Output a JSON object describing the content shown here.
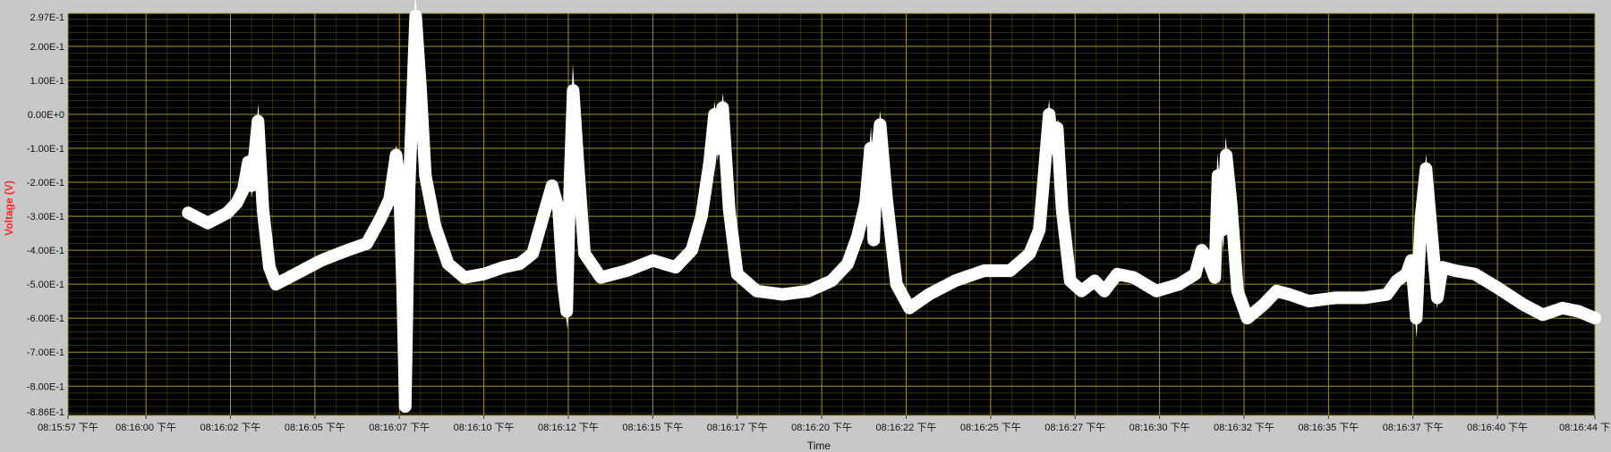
{
  "chart_data": {
    "type": "line",
    "title": "",
    "xlabel": "Time",
    "ylabel": "Voltage (V)",
    "ylim": [
      -0.886,
      0.297
    ],
    "xlim_seconds": [
      0,
      47
    ],
    "yticks": [
      "2.97E-1",
      "2.00E-1",
      "1.00E-1",
      "0.00E+0",
      "-1.00E-1",
      "-2.00E-1",
      "-3.00E-1",
      "-4.00E-1",
      "-5.00E-1",
      "-6.00E-1",
      "-7.00E-1",
      "-8.00E-1",
      "-8.86E-1"
    ],
    "ytick_values": [
      0.297,
      0.2,
      0.1,
      0.0,
      -0.1,
      -0.2,
      -0.3,
      -0.4,
      -0.5,
      -0.6,
      -0.7,
      -0.8,
      -0.886
    ],
    "xticks": [
      {
        "t": 0.0,
        "label": "08:15:57 下午"
      },
      {
        "t": 2.4,
        "label": "08:16:00 下午"
      },
      {
        "t": 5.0,
        "label": "08:16:02 下午"
      },
      {
        "t": 7.6,
        "label": "08:16:05 下午"
      },
      {
        "t": 10.2,
        "label": "08:16:07 下午"
      },
      {
        "t": 12.8,
        "label": "08:16:10 下午"
      },
      {
        "t": 15.4,
        "label": "08:16:12 下午"
      },
      {
        "t": 18.0,
        "label": "08:16:15 下午"
      },
      {
        "t": 20.6,
        "label": "08:16:17 下午"
      },
      {
        "t": 23.2,
        "label": "08:16:20 下午"
      },
      {
        "t": 25.8,
        "label": "08:16:22 下午"
      },
      {
        "t": 28.4,
        "label": "08:16:25 下午"
      },
      {
        "t": 31.0,
        "label": "08:16:27 下午"
      },
      {
        "t": 33.6,
        "label": "08:16:30 下午"
      },
      {
        "t": 36.2,
        "label": "08:16:32 下午"
      },
      {
        "t": 38.8,
        "label": "08:16:35 下午"
      },
      {
        "t": 41.4,
        "label": "08:16:37 下午"
      },
      {
        "t": 44.0,
        "label": "08:16:40 下午"
      },
      {
        "t": 47.0,
        "label": "08:16:44 下"
      }
    ],
    "grid": true,
    "colors": {
      "plot_bg": "#000000",
      "major_grid": "#a09428",
      "minor_grid": "#4e4a16",
      "trace": "#ffffff",
      "frame_bg": "#c8c8c8",
      "ylabel": "#ff2a2a"
    },
    "series": [
      {
        "points": [
          [
            3.7,
            -0.29
          ],
          [
            4.3,
            -0.32
          ],
          [
            4.9,
            -0.29
          ],
          [
            5.2,
            -0.26
          ],
          [
            5.4,
            -0.22
          ],
          [
            5.55,
            -0.14
          ],
          [
            5.65,
            -0.21
          ],
          [
            5.85,
            -0.02
          ],
          [
            6.0,
            -0.28
          ],
          [
            6.2,
            -0.45
          ],
          [
            6.4,
            -0.5
          ],
          [
            7.0,
            -0.47
          ],
          [
            7.8,
            -0.43
          ],
          [
            8.6,
            -0.4
          ],
          [
            9.2,
            -0.38
          ],
          [
            9.6,
            -0.31
          ],
          [
            9.9,
            -0.25
          ],
          [
            10.1,
            -0.12
          ],
          [
            10.2,
            -0.2
          ],
          [
            10.3,
            -0.52
          ],
          [
            10.38,
            -0.86
          ],
          [
            10.5,
            -0.22
          ],
          [
            10.7,
            0.29
          ],
          [
            10.85,
            0.08
          ],
          [
            11.0,
            -0.18
          ],
          [
            11.3,
            -0.33
          ],
          [
            11.7,
            -0.44
          ],
          [
            12.2,
            -0.48
          ],
          [
            12.8,
            -0.47
          ],
          [
            13.4,
            -0.45
          ],
          [
            13.9,
            -0.44
          ],
          [
            14.3,
            -0.41
          ],
          [
            14.6,
            -0.31
          ],
          [
            14.9,
            -0.21
          ],
          [
            15.1,
            -0.28
          ],
          [
            15.25,
            -0.5
          ],
          [
            15.35,
            -0.58
          ],
          [
            15.45,
            -0.2
          ],
          [
            15.55,
            0.07
          ],
          [
            15.7,
            -0.15
          ],
          [
            15.9,
            -0.41
          ],
          [
            16.4,
            -0.48
          ],
          [
            17.2,
            -0.46
          ],
          [
            18.0,
            -0.43
          ],
          [
            18.7,
            -0.45
          ],
          [
            19.2,
            -0.4
          ],
          [
            19.5,
            -0.3
          ],
          [
            19.75,
            -0.14
          ],
          [
            19.9,
            0.0
          ],
          [
            20.0,
            -0.1
          ],
          [
            20.15,
            0.02
          ],
          [
            20.35,
            -0.28
          ],
          [
            20.6,
            -0.47
          ],
          [
            21.2,
            -0.52
          ],
          [
            22.0,
            -0.53
          ],
          [
            22.8,
            -0.52
          ],
          [
            23.5,
            -0.49
          ],
          [
            24.0,
            -0.44
          ],
          [
            24.3,
            -0.36
          ],
          [
            24.55,
            -0.26
          ],
          [
            24.7,
            -0.1
          ],
          [
            24.8,
            -0.37
          ],
          [
            24.9,
            -0.12
          ],
          [
            25.0,
            -0.03
          ],
          [
            25.2,
            -0.25
          ],
          [
            25.5,
            -0.5
          ],
          [
            25.9,
            -0.57
          ],
          [
            26.5,
            -0.53
          ],
          [
            27.3,
            -0.49
          ],
          [
            28.2,
            -0.46
          ],
          [
            29.0,
            -0.46
          ],
          [
            29.6,
            -0.41
          ],
          [
            29.9,
            -0.34
          ],
          [
            30.05,
            -0.17
          ],
          [
            30.2,
            0.0
          ],
          [
            30.3,
            -0.1
          ],
          [
            30.45,
            -0.04
          ],
          [
            30.6,
            -0.28
          ],
          [
            30.85,
            -0.49
          ],
          [
            31.2,
            -0.52
          ],
          [
            31.6,
            -0.49
          ],
          [
            31.9,
            -0.52
          ],
          [
            32.3,
            -0.47
          ],
          [
            32.8,
            -0.48
          ],
          [
            33.5,
            -0.52
          ],
          [
            34.2,
            -0.5
          ],
          [
            34.7,
            -0.47
          ],
          [
            34.9,
            -0.4
          ],
          [
            35.1,
            -0.43
          ],
          [
            35.3,
            -0.48
          ],
          [
            35.4,
            -0.18
          ],
          [
            35.55,
            -0.34
          ],
          [
            35.65,
            -0.12
          ],
          [
            35.8,
            -0.26
          ],
          [
            36.0,
            -0.52
          ],
          [
            36.3,
            -0.6
          ],
          [
            36.8,
            -0.56
          ],
          [
            37.2,
            -0.52
          ],
          [
            37.6,
            -0.53
          ],
          [
            38.2,
            -0.55
          ],
          [
            39.0,
            -0.54
          ],
          [
            39.9,
            -0.54
          ],
          [
            40.6,
            -0.53
          ],
          [
            40.9,
            -0.49
          ],
          [
            41.2,
            -0.47
          ],
          [
            41.35,
            -0.43
          ],
          [
            41.5,
            -0.6
          ],
          [
            41.65,
            -0.3
          ],
          [
            41.8,
            -0.16
          ],
          [
            42.0,
            -0.38
          ],
          [
            42.15,
            -0.54
          ],
          [
            42.3,
            -0.45
          ],
          [
            42.7,
            -0.46
          ],
          [
            43.3,
            -0.47
          ],
          [
            44.0,
            -0.51
          ],
          [
            44.8,
            -0.56
          ],
          [
            45.4,
            -0.59
          ],
          [
            46.0,
            -0.57
          ],
          [
            46.5,
            -0.58
          ],
          [
            47.0,
            -0.6
          ]
        ]
      }
    ]
  }
}
